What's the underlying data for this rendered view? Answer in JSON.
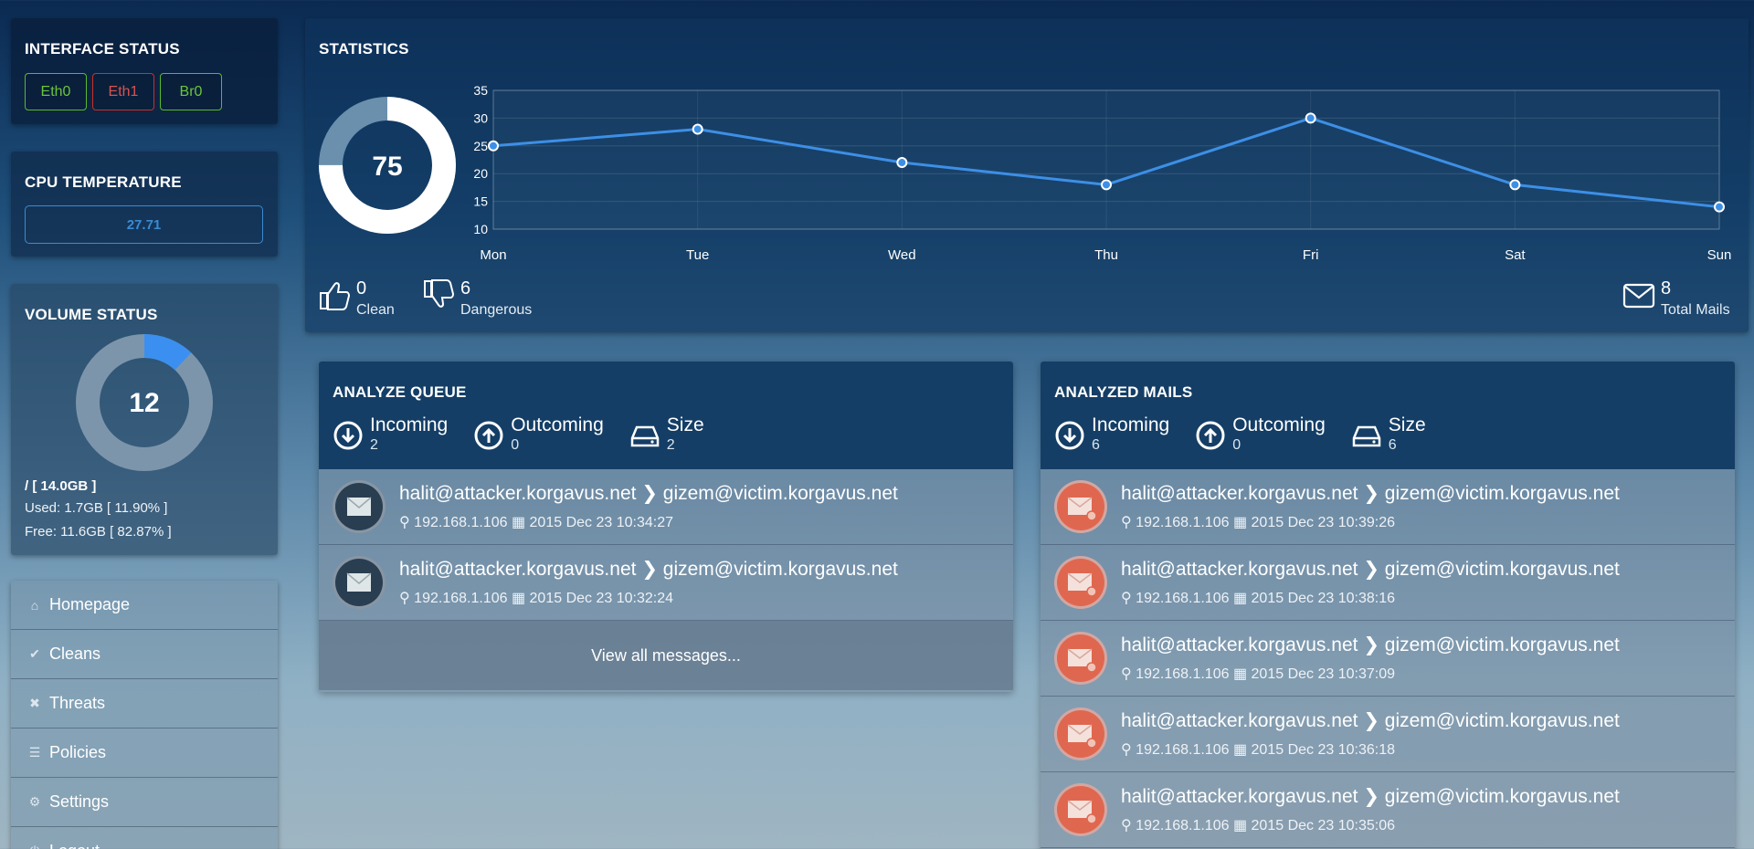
{
  "interface_status": {
    "title": "INTERFACE STATUS",
    "interfaces": [
      {
        "label": "Eth0",
        "state": "up"
      },
      {
        "label": "Eth1",
        "state": "down"
      },
      {
        "label": "Br0",
        "state": "up"
      }
    ]
  },
  "cpu": {
    "title": "CPU TEMPERATURE",
    "value": "27.71"
  },
  "volume": {
    "title": "VOLUME STATUS",
    "percent": 12,
    "total": "/ [ 14.0GB ]",
    "used": "Used: 1.7GB [ 11.90% ]",
    "free": "Free: 11.6GB [ 82.87% ]"
  },
  "nav": [
    {
      "label": "Homepage",
      "icon": "home-icon"
    },
    {
      "label": "Cleans",
      "icon": "check-icon"
    },
    {
      "label": "Threats",
      "icon": "times-icon"
    },
    {
      "label": "Policies",
      "icon": "list-icon"
    },
    {
      "label": "Settings",
      "icon": "gears-icon"
    },
    {
      "label": "Logout",
      "icon": "power-icon"
    }
  ],
  "statistics": {
    "title": "STATISTICS",
    "donut_value": "75",
    "donut_fraction": 0.75,
    "clean": {
      "value": "0",
      "label": "Clean"
    },
    "dangerous": {
      "value": "6",
      "label": "Dangerous"
    },
    "total": {
      "value": "8",
      "label": "Total Mails"
    }
  },
  "chart_data": {
    "type": "line",
    "categories": [
      "Mon",
      "Tue",
      "Wed",
      "Thu",
      "Fri",
      "Sat",
      "Sun"
    ],
    "values": [
      25,
      28,
      22,
      18,
      30,
      18,
      14
    ],
    "y_ticks": [
      10,
      15,
      20,
      25,
      30,
      35
    ],
    "ylim": [
      10,
      35
    ],
    "grid": true,
    "color": "#3d8fe6"
  },
  "analyze_queue": {
    "title": "ANALYZE QUEUE",
    "incoming": {
      "label": "Incoming",
      "value": "2"
    },
    "outcoming": {
      "label": "Outcoming",
      "value": "0"
    },
    "size": {
      "label": "Size",
      "value": "2"
    },
    "rows": [
      {
        "from": "halit@attacker.korgavus.net",
        "to": "gizem@victim.korgavus.net",
        "ip": "192.168.1.106",
        "date": "2015 Dec 23 10:34:27"
      },
      {
        "from": "halit@attacker.korgavus.net",
        "to": "gizem@victim.korgavus.net",
        "ip": "192.168.1.106",
        "date": "2015 Dec 23 10:32:24"
      }
    ],
    "view_all": "View all messages..."
  },
  "analyzed_mails": {
    "title": "ANALYZED MAILS",
    "incoming": {
      "label": "Incoming",
      "value": "6"
    },
    "outcoming": {
      "label": "Outcoming",
      "value": "0"
    },
    "size": {
      "label": "Size",
      "value": "6"
    },
    "rows": [
      {
        "from": "halit@attacker.korgavus.net",
        "to": "gizem@victim.korgavus.net",
        "ip": "192.168.1.106",
        "date": "2015 Dec 23 10:39:26"
      },
      {
        "from": "halit@attacker.korgavus.net",
        "to": "gizem@victim.korgavus.net",
        "ip": "192.168.1.106",
        "date": "2015 Dec 23 10:38:16"
      },
      {
        "from": "halit@attacker.korgavus.net",
        "to": "gizem@victim.korgavus.net",
        "ip": "192.168.1.106",
        "date": "2015 Dec 23 10:37:09"
      },
      {
        "from": "halit@attacker.korgavus.net",
        "to": "gizem@victim.korgavus.net",
        "ip": "192.168.1.106",
        "date": "2015 Dec 23 10:36:18"
      },
      {
        "from": "halit@attacker.korgavus.net",
        "to": "gizem@victim.korgavus.net",
        "ip": "192.168.1.106",
        "date": "2015 Dec 23 10:35:06"
      }
    ]
  }
}
